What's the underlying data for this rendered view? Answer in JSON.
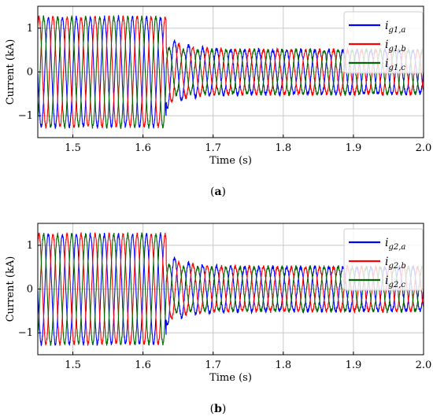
{
  "chart_data": [
    {
      "type": "line",
      "caption_open": "(",
      "caption": "a",
      "caption_close": ")",
      "xlabel": "Time (s)",
      "ylabel": "Current (kA)",
      "xlim": [
        1.45,
        2.0
      ],
      "ylim": [
        -1.5,
        1.5
      ],
      "xticks": [
        "1.5",
        "1.6",
        "1.7",
        "1.8",
        "1.9",
        "2.0"
      ],
      "yticks": [
        "1",
        "0",
        "−1"
      ],
      "grid": true,
      "legend_position": "top-right",
      "step_time": 1.633,
      "amplitude_before": 1.25,
      "amplitude_after": 0.5,
      "frequency_hz": 50,
      "series": [
        {
          "name_main": "i",
          "name_sub": "g1,a",
          "color": "#0000ff",
          "phase_deg": 0
        },
        {
          "name_main": "i",
          "name_sub": "g1,b",
          "color": "#ff0000",
          "phase_deg": -120
        },
        {
          "name_main": "i",
          "name_sub": "g1,c",
          "color": "#006400",
          "phase_deg": 120
        }
      ]
    },
    {
      "type": "line",
      "caption_open": "(",
      "caption": "b",
      "caption_close": ")",
      "xlabel": "Time (s)",
      "ylabel": "Current (kA)",
      "xlim": [
        1.45,
        2.0
      ],
      "ylim": [
        -1.5,
        1.5
      ],
      "xticks": [
        "1.5",
        "1.6",
        "1.7",
        "1.8",
        "1.9",
        "2.0"
      ],
      "yticks": [
        "1",
        "0",
        "−1"
      ],
      "grid": true,
      "legend_position": "top-right",
      "step_time": 1.633,
      "amplitude_before": 1.25,
      "amplitude_after": 0.5,
      "frequency_hz": 50,
      "series": [
        {
          "name_main": "i",
          "name_sub": "g2,a",
          "color": "#0000ff",
          "phase_deg": 0
        },
        {
          "name_main": "i",
          "name_sub": "g2,b",
          "color": "#ff0000",
          "phase_deg": -120
        },
        {
          "name_main": "i",
          "name_sub": "g2,c",
          "color": "#006400",
          "phase_deg": 120
        }
      ]
    }
  ]
}
